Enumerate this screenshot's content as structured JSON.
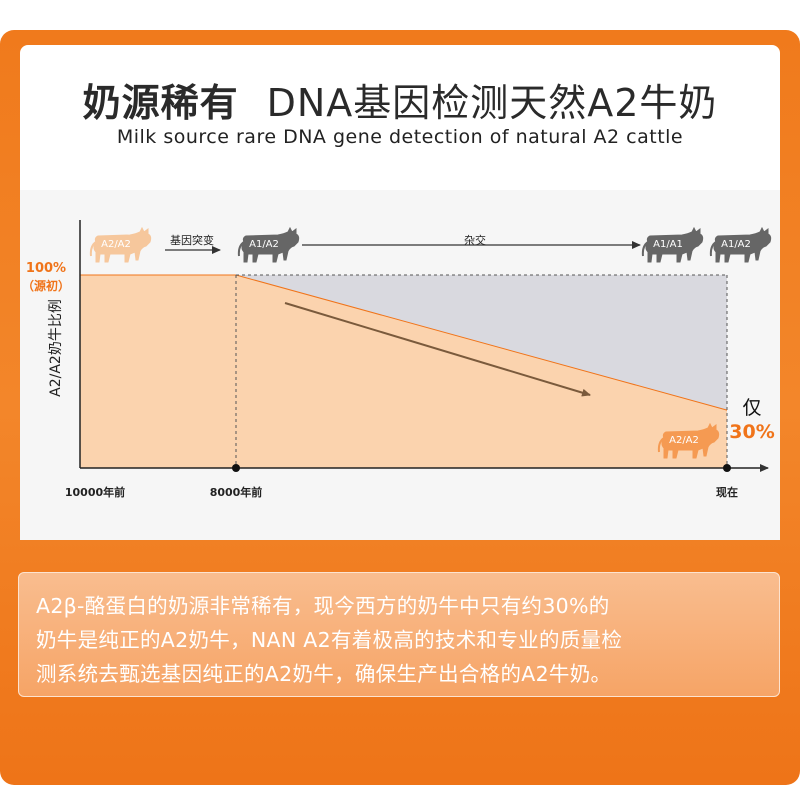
{
  "header": {
    "title_main": "奶源稀有",
    "title_rest": "DNA基因检测天然A2牛奶",
    "subtitle": "Milk source rare DNA gene detection of natural A2 cattle"
  },
  "chart_data": {
    "type": "area",
    "ylabel": "A2/A2奶牛比例",
    "y_start_label_line1": "100%",
    "y_start_label_line2": "（源初）",
    "x_ticks": [
      "10000年前",
      "8000年前",
      "现在"
    ],
    "x": [
      "10000年前",
      "8000年前",
      "现在"
    ],
    "series": [
      {
        "values": [
          100,
          100,
          30
        ]
      }
    ],
    "ylim": [
      0,
      100
    ],
    "end_label_prefix": "仅",
    "end_label_value": "30%",
    "annotations": {
      "mutation": "基因突变",
      "crossbreed": "杂交"
    },
    "cattle": [
      {
        "label": "A2/A2",
        "color": "#f6c79c"
      },
      {
        "label": "A1/A2",
        "color": "#666666"
      },
      {
        "label": "A1/A1",
        "color": "#666666"
      },
      {
        "label": "A1/A2",
        "color": "#666666"
      },
      {
        "label": "A2/A2",
        "color": "#f59a52"
      }
    ],
    "colors": {
      "fill": "#fbd3ae",
      "gray_fill": "#d9d9df",
      "accent": "#f0741a",
      "arrow": "#7a5a3c"
    }
  },
  "description": {
    "line1": "A2β-酪蛋白的奶源非常稀有，现今西方的奶牛中只有约30%的",
    "line2": "奶牛是纯正的A2奶牛，NAN A2有着极高的技术和专业的质量检",
    "line3": "测系统去甄选基因纯正的A2奶牛，确保生产出合格的A2牛奶。"
  }
}
